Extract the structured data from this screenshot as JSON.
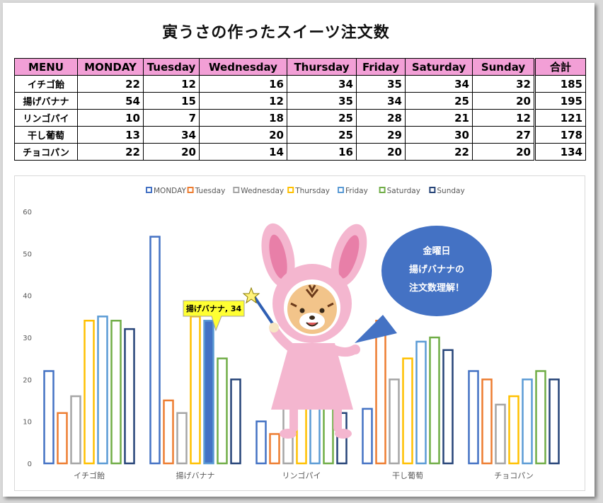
{
  "title": "寅うさの作ったスイーツ注文数",
  "table": {
    "headers": [
      "MENU",
      "MONDAY",
      "Tuesday",
      "Wednesday",
      "Thursday",
      "Friday",
      "Saturday",
      "Sunday",
      "合計"
    ],
    "rows": [
      {
        "menu": "イチゴ飴",
        "values": [
          "22",
          "12",
          "16",
          "34",
          "35",
          "34",
          "32"
        ],
        "total": "185"
      },
      {
        "menu": "揚げバナナ",
        "values": [
          "54",
          "15",
          "12",
          "35",
          "34",
          "25",
          "20"
        ],
        "total": "195"
      },
      {
        "menu": "リンゴパイ",
        "values": [
          "10",
          "7",
          "18",
          "25",
          "28",
          "21",
          "12"
        ],
        "total": "121"
      },
      {
        "menu": "干し葡萄",
        "values": [
          "13",
          "34",
          "20",
          "25",
          "29",
          "30",
          "27"
        ],
        "total": "178"
      },
      {
        "menu": "チョコパン",
        "values": [
          "22",
          "20",
          "14",
          "16",
          "20",
          "22",
          "20"
        ],
        "total": "134"
      }
    ]
  },
  "chart_data": {
    "type": "bar",
    "categories": [
      "イチゴ飴",
      "揚げバナナ",
      "リンゴパイ",
      "干し葡萄",
      "チョコパン"
    ],
    "series": [
      {
        "name": "MONDAY",
        "color": "#4472c4",
        "values": [
          22,
          54,
          10,
          13,
          22
        ]
      },
      {
        "name": "Tuesday",
        "color": "#ed7d31",
        "values": [
          12,
          15,
          7,
          34,
          20
        ]
      },
      {
        "name": "Wednesday",
        "color": "#a5a5a5",
        "values": [
          16,
          12,
          18,
          20,
          14
        ]
      },
      {
        "name": "Thursday",
        "color": "#ffc000",
        "values": [
          34,
          35,
          25,
          25,
          16
        ]
      },
      {
        "name": "Friday",
        "color": "#5b9bd5",
        "values": [
          35,
          34,
          28,
          29,
          20
        ]
      },
      {
        "name": "Saturday",
        "color": "#70ad47",
        "values": [
          34,
          25,
          21,
          30,
          22
        ]
      },
      {
        "name": "Sunday",
        "color": "#264478",
        "values": [
          32,
          20,
          12,
          27,
          20
        ]
      }
    ],
    "ylim": [
      0,
      60
    ],
    "yticks": [
      0,
      10,
      20,
      30,
      40,
      50,
      60
    ],
    "grid": false,
    "legend": "top",
    "highlight": {
      "category_index": 1,
      "series_index": 4,
      "fill": "#4472c4"
    },
    "data_label": "揚げバナナ, 34",
    "speech_bubble": [
      "金曜日",
      "揚げバナナの",
      "注文数理解！"
    ],
    "bubble_color": "#4472c4"
  }
}
